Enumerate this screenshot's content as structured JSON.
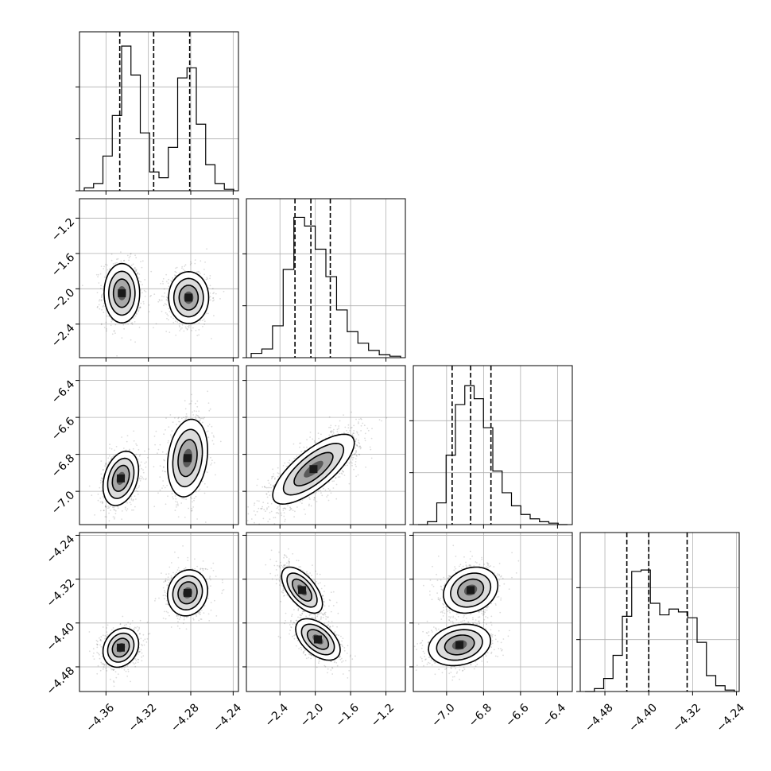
{
  "chart_data": {
    "type": "corner",
    "grid": true,
    "params": [
      {
        "range": [
          -4.385,
          -4.235
        ],
        "ticks": [
          -4.36,
          -4.32,
          -4.28,
          -4.24
        ],
        "tick_labels": [
          "−4.36",
          "−4.32",
          "−4.28",
          "−4.24"
        ],
        "quantiles": [
          -4.347,
          -4.315,
          -4.281
        ],
        "hist": [
          0.02,
          0.05,
          0.24,
          0.52,
          1.0,
          0.8,
          0.4,
          0.13,
          0.09,
          0.3,
          0.78,
          0.85,
          0.46,
          0.18,
          0.05,
          0.01
        ]
      },
      {
        "range": [
          -2.78,
          -0.98
        ],
        "ticks": [
          -2.4,
          -2.0,
          -1.6,
          -1.2
        ],
        "tick_labels": [
          "−2.4",
          "−2.0",
          "−1.6",
          "−1.2"
        ],
        "quantiles": [
          -2.23,
          -2.05,
          -1.83
        ],
        "hist": [
          0.03,
          0.06,
          0.22,
          0.61,
          0.97,
          0.91,
          0.75,
          0.56,
          0.33,
          0.18,
          0.1,
          0.05,
          0.02,
          0.01
        ]
      },
      {
        "range": [
          -7.18,
          -6.32
        ],
        "ticks": [
          -7.0,
          -6.8,
          -6.6,
          -6.4
        ],
        "tick_labels": [
          "−7.0",
          "−6.8",
          "−6.6",
          "−6.4"
        ],
        "quantiles": [
          -6.97,
          -6.87,
          -6.76
        ],
        "hist": [
          0.0,
          0.02,
          0.15,
          0.48,
          0.83,
          0.96,
          0.87,
          0.67,
          0.37,
          0.22,
          0.13,
          0.07,
          0.04,
          0.02,
          0.01,
          0.0
        ]
      },
      {
        "range": [
          -4.525,
          -4.235
        ],
        "ticks": [
          -4.48,
          -4.4,
          -4.32,
          -4.24
        ],
        "tick_labels": [
          "−4.48",
          "−4.40",
          "−4.32",
          "−4.24"
        ],
        "quantiles": [
          -4.44,
          -4.4,
          -4.33
        ],
        "hist": [
          0.0,
          0.02,
          0.09,
          0.25,
          0.52,
          0.83,
          0.84,
          0.61,
          0.53,
          0.57,
          0.55,
          0.51,
          0.34,
          0.11,
          0.04,
          0.01
        ]
      }
    ],
    "pairs": [
      {
        "row": 1,
        "col": 0,
        "modes": [
          {
            "x": -4.345,
            "y": -2.05,
            "sx": 0.008,
            "sy": 0.16,
            "rho": 0.0
          },
          {
            "x": -4.282,
            "y": -2.1,
            "sx": 0.009,
            "sy": 0.14,
            "rho": 0.0
          }
        ]
      },
      {
        "row": 2,
        "col": 0,
        "modes": [
          {
            "x": -4.346,
            "y": -6.93,
            "sx": 0.008,
            "sy": 0.07,
            "rho": 0.3
          },
          {
            "x": -4.283,
            "y": -6.82,
            "sx": 0.009,
            "sy": 0.1,
            "rho": 0.2
          }
        ]
      },
      {
        "row": 2,
        "col": 1,
        "modes": [
          {
            "x": -2.02,
            "y": -6.88,
            "sx": 0.22,
            "sy": 0.09,
            "rho": 0.75
          }
        ]
      },
      {
        "row": 3,
        "col": 0,
        "modes": [
          {
            "x": -4.346,
            "y": -4.445,
            "sx": 0.008,
            "sy": 0.017,
            "rho": 0.2
          },
          {
            "x": -4.283,
            "y": -4.345,
            "sx": 0.009,
            "sy": 0.02,
            "rho": 0.1
          }
        ]
      },
      {
        "row": 3,
        "col": 1,
        "modes": [
          {
            "x": -2.15,
            "y": -4.34,
            "sx": 0.11,
            "sy": 0.02,
            "rho": -0.6
          },
          {
            "x": -1.97,
            "y": -4.43,
            "sx": 0.12,
            "sy": 0.018,
            "rho": -0.5
          }
        ]
      },
      {
        "row": 3,
        "col": 2,
        "modes": [
          {
            "x": -6.87,
            "y": -4.34,
            "sx": 0.07,
            "sy": 0.02,
            "rho": 0.2
          },
          {
            "x": -6.93,
            "y": -4.44,
            "sx": 0.08,
            "sy": 0.018,
            "rho": 0.2
          }
        ]
      }
    ]
  }
}
